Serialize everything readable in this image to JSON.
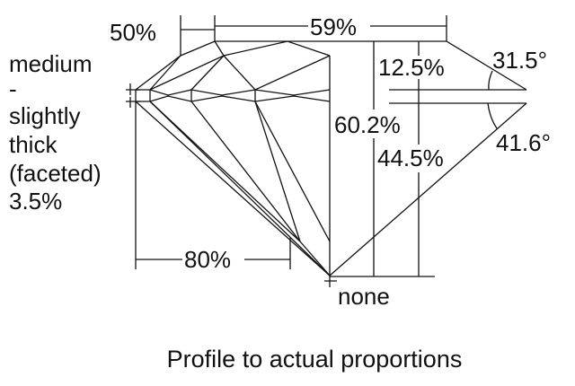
{
  "diagram": {
    "crown_angle": "31.5°",
    "pavilion_angle": "41.6°",
    "table_percent": "59%",
    "star_length": "50%",
    "crown_height": "12.5%",
    "total_depth": "60.2%",
    "pavilion_depth": "44.5%",
    "lower_half_length": "80%",
    "culet": "none",
    "girdle": {
      "line1": "medium",
      "line2": "-",
      "line3": "slightly",
      "line4": "thick",
      "line5": "(faceted)",
      "line6": "3.5%"
    },
    "caption": "Profile to actual proportions"
  }
}
